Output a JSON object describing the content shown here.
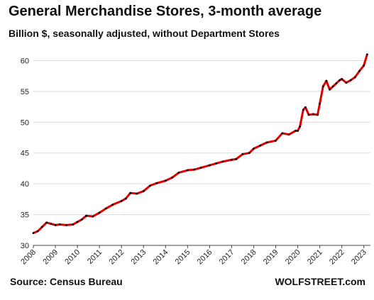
{
  "chart_data": {
    "type": "line",
    "title": "General Merchandise Stores, 3-month average",
    "subtitle": "Billion $, seasonally adjusted, without Department Stores",
    "source": "Source: Census Bureau",
    "brand": "WOLFSTREET.com",
    "xlabel": "",
    "ylabel": "",
    "xlim": [
      2008,
      2023.3
    ],
    "ylim": [
      30,
      62
    ],
    "yticks": [
      30,
      35,
      40,
      45,
      50,
      55,
      60
    ],
    "xticks": [
      "2008",
      "2009",
      "2010",
      "2011",
      "2012",
      "2013",
      "2014",
      "2015",
      "2016",
      "2017",
      "2018",
      "2019",
      "2020",
      "2021",
      "2022",
      "2023"
    ],
    "grid": "horizontal",
    "line_color": "#e00000",
    "marker_color": "#000000",
    "series": [
      {
        "x": [
          2008.0,
          2008.2,
          2008.4,
          2008.6,
          2008.8,
          2009.0,
          2009.2,
          2009.5,
          2009.8,
          2010.0,
          2010.2,
          2010.4,
          2010.7,
          2011.0,
          2011.3,
          2011.6,
          2012.0,
          2012.2,
          2012.4,
          2012.7,
          2013.0,
          2013.3,
          2013.6,
          2014.0,
          2014.3,
          2014.6,
          2015.0,
          2015.3,
          2015.6,
          2016.0,
          2016.3,
          2016.6,
          2017.0,
          2017.2,
          2017.5,
          2017.8,
          2018.0,
          2018.3,
          2018.6,
          2019.0,
          2019.3,
          2019.6,
          2019.9,
          2020.0,
          2020.1,
          2020.25,
          2020.35,
          2020.5,
          2020.7,
          2020.9,
          2021.0,
          2021.15,
          2021.3,
          2021.45,
          2021.6,
          2021.75,
          2021.9,
          2022.0,
          2022.2,
          2022.4,
          2022.6,
          2022.8,
          2023.0,
          2023.15
        ],
        "y": [
          32.0,
          32.3,
          33.0,
          33.7,
          33.5,
          33.3,
          33.4,
          33.3,
          33.4,
          33.8,
          34.2,
          34.8,
          34.7,
          35.3,
          36.0,
          36.6,
          37.2,
          37.6,
          38.5,
          38.4,
          38.8,
          39.7,
          40.1,
          40.5,
          41.0,
          41.8,
          42.2,
          42.3,
          42.6,
          43.0,
          43.3,
          43.6,
          43.9,
          44.0,
          44.8,
          45.0,
          45.7,
          46.2,
          46.7,
          47.0,
          48.2,
          48.0,
          48.6,
          48.6,
          49.3,
          52.0,
          52.4,
          51.2,
          51.3,
          51.2,
          53.0,
          55.8,
          56.7,
          55.3,
          55.8,
          56.3,
          56.8,
          57.0,
          56.4,
          56.8,
          57.3,
          58.3,
          59.2,
          61.0
        ]
      }
    ]
  }
}
